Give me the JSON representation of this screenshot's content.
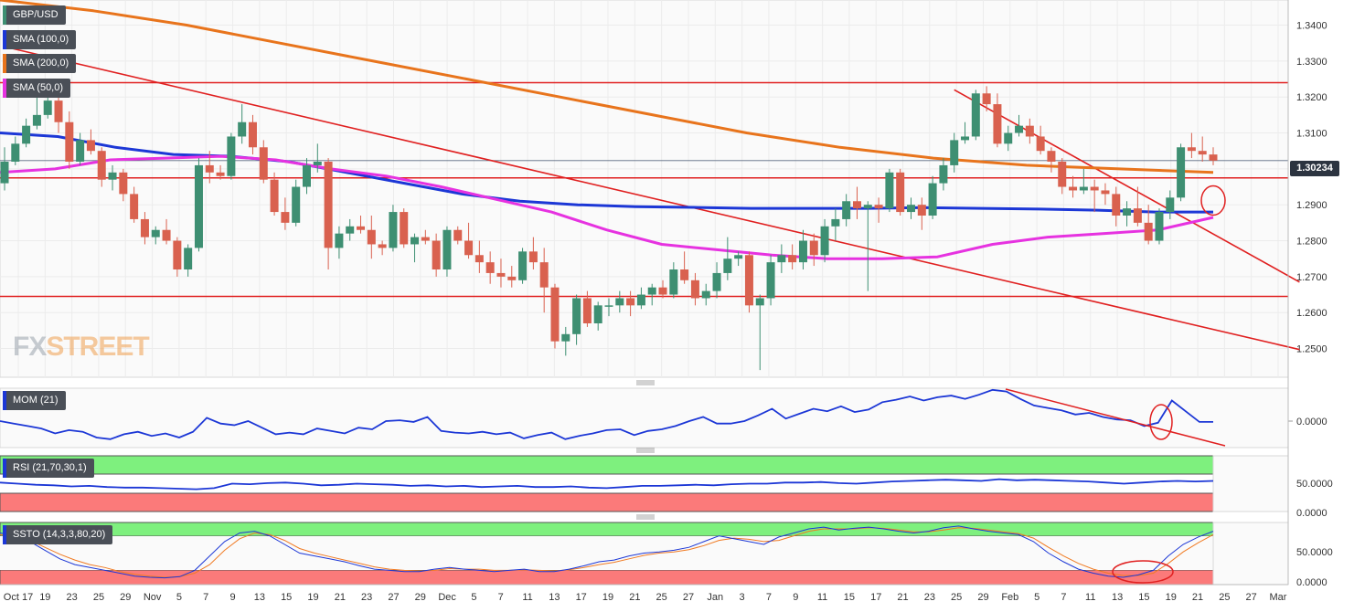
{
  "colors": {
    "up": "#3e8f72",
    "down": "#d9614f",
    "sma200": "#e8741c",
    "sma100": "#1c37d6",
    "sma50": "#e632e0",
    "hline": "#e02020",
    "mom": "#1c37d6",
    "ssto_k": "#1c37d6",
    "ssto_d": "#f07a22",
    "ob": "#7ef07e",
    "os": "#fb7a7a"
  },
  "legends": {
    "main": "GBP/USD",
    "sma100": "SMA (100,0)",
    "sma200": "SMA (200,0)",
    "sma50": "SMA (50,0)",
    "mom": "MOM (21)",
    "rsi": "RSI (21,70,30,1)",
    "ssto": "SSTO (14,3,3,80,20)"
  },
  "watermark": {
    "prefix": "FX",
    "suffix": "STREET"
  },
  "price_tag": "1.30234",
  "chart_data": {
    "type": "candlestick",
    "x_labels": [
      "Oct 17",
      "19",
      "23",
      "25",
      "29",
      "Nov",
      "5",
      "7",
      "9",
      "13",
      "15",
      "19",
      "21",
      "23",
      "27",
      "29",
      "Dec",
      "5",
      "7",
      "11",
      "13",
      "17",
      "19",
      "21",
      "25",
      "27",
      "Jan",
      "3",
      "7",
      "9",
      "11",
      "15",
      "17",
      "21",
      "23",
      "25",
      "29",
      "Feb",
      "5",
      "7",
      "11",
      "13",
      "15",
      "19",
      "21",
      "25",
      "27",
      "Mar"
    ],
    "y_ticks": [
      "1.3400",
      "1.3300",
      "1.3200",
      "1.3100",
      "1.3000",
      "1.2900",
      "1.2800",
      "1.2700",
      "1.2600",
      "1.2500"
    ],
    "ylim": [
      1.242,
      1.347
    ],
    "candles": [
      [
        1.296,
        1.306,
        1.294,
        1.302
      ],
      [
        1.302,
        1.309,
        1.301,
        1.307
      ],
      [
        1.307,
        1.314,
        1.306,
        1.312
      ],
      [
        1.312,
        1.32,
        1.311,
        1.315
      ],
      [
        1.315,
        1.324,
        1.314,
        1.319
      ],
      [
        1.319,
        1.323,
        1.31,
        1.313
      ],
      [
        1.313,
        1.316,
        1.3,
        1.302
      ],
      [
        1.302,
        1.31,
        1.301,
        1.308
      ],
      [
        1.308,
        1.311,
        1.304,
        1.305
      ],
      [
        1.305,
        1.306,
        1.295,
        1.297
      ],
      [
        1.297,
        1.301,
        1.294,
        1.299
      ],
      [
        1.299,
        1.3,
        1.291,
        1.293
      ],
      [
        1.293,
        1.295,
        1.285,
        1.286
      ],
      [
        1.286,
        1.288,
        1.279,
        1.281
      ],
      [
        1.281,
        1.284,
        1.279,
        1.283
      ],
      [
        1.283,
        1.286,
        1.279,
        1.28
      ],
      [
        1.28,
        1.281,
        1.27,
        1.272
      ],
      [
        1.272,
        1.279,
        1.27,
        1.278
      ],
      [
        1.278,
        1.303,
        1.277,
        1.301
      ],
      [
        1.301,
        1.305,
        1.296,
        1.299
      ],
      [
        1.299,
        1.301,
        1.297,
        1.298
      ],
      [
        1.298,
        1.31,
        1.297,
        1.309
      ],
      [
        1.309,
        1.318,
        1.307,
        1.313
      ],
      [
        1.313,
        1.315,
        1.304,
        1.306
      ],
      [
        1.306,
        1.308,
        1.296,
        1.297
      ],
      [
        1.297,
        1.299,
        1.287,
        1.288
      ],
      [
        1.288,
        1.292,
        1.283,
        1.285
      ],
      [
        1.285,
        1.297,
        1.284,
        1.295
      ],
      [
        1.295,
        1.303,
        1.293,
        1.301
      ],
      [
        1.301,
        1.307,
        1.299,
        1.302
      ],
      [
        1.302,
        1.303,
        1.272,
        1.278
      ],
      [
        1.278,
        1.284,
        1.275,
        1.282
      ],
      [
        1.282,
        1.286,
        1.28,
        1.284
      ],
      [
        1.284,
        1.287,
        1.282,
        1.283
      ],
      [
        1.283,
        1.287,
        1.275,
        1.279
      ],
      [
        1.279,
        1.28,
        1.276,
        1.278
      ],
      [
        1.278,
        1.29,
        1.277,
        1.288
      ],
      [
        1.288,
        1.289,
        1.278,
        1.279
      ],
      [
        1.279,
        1.282,
        1.274,
        1.281
      ],
      [
        1.281,
        1.283,
        1.279,
        1.28
      ],
      [
        1.28,
        1.282,
        1.27,
        1.272
      ],
      [
        1.272,
        1.284,
        1.27,
        1.283
      ],
      [
        1.283,
        1.284,
        1.279,
        1.28
      ],
      [
        1.28,
        1.285,
        1.275,
        1.276
      ],
      [
        1.276,
        1.28,
        1.271,
        1.274
      ],
      [
        1.274,
        1.277,
        1.268,
        1.271
      ],
      [
        1.271,
        1.275,
        1.267,
        1.27
      ],
      [
        1.27,
        1.273,
        1.267,
        1.269
      ],
      [
        1.269,
        1.278,
        1.268,
        1.277
      ],
      [
        1.277,
        1.281,
        1.272,
        1.274
      ],
      [
        1.274,
        1.278,
        1.26,
        1.267
      ],
      [
        1.267,
        1.268,
        1.25,
        1.252
      ],
      [
        1.252,
        1.256,
        1.248,
        1.254
      ],
      [
        1.254,
        1.265,
        1.251,
        1.264
      ],
      [
        1.264,
        1.266,
        1.256,
        1.257
      ],
      [
        1.257,
        1.263,
        1.255,
        1.262
      ],
      [
        1.262,
        1.264,
        1.259,
        1.262
      ],
      [
        1.262,
        1.266,
        1.26,
        1.264
      ],
      [
        1.264,
        1.266,
        1.259,
        1.262
      ],
      [
        1.262,
        1.267,
        1.261,
        1.265
      ],
      [
        1.265,
        1.268,
        1.262,
        1.267
      ],
      [
        1.267,
        1.269,
        1.264,
        1.265
      ],
      [
        1.265,
        1.274,
        1.264,
        1.272
      ],
      [
        1.272,
        1.277,
        1.268,
        1.269
      ],
      [
        1.269,
        1.271,
        1.262,
        1.264
      ],
      [
        1.264,
        1.268,
        1.262,
        1.266
      ],
      [
        1.266,
        1.274,
        1.264,
        1.271
      ],
      [
        1.271,
        1.281,
        1.269,
        1.275
      ],
      [
        1.275,
        1.277,
        1.273,
        1.276
      ],
      [
        1.276,
        1.277,
        1.26,
        1.262
      ],
      [
        1.262,
        1.265,
        1.244,
        1.264
      ],
      [
        1.264,
        1.276,
        1.262,
        1.274
      ],
      [
        1.274,
        1.279,
        1.271,
        1.276
      ],
      [
        1.276,
        1.279,
        1.272,
        1.274
      ],
      [
        1.274,
        1.283,
        1.272,
        1.28
      ],
      [
        1.28,
        1.282,
        1.273,
        1.276
      ],
      [
        1.276,
        1.286,
        1.274,
        1.284
      ],
      [
        1.284,
        1.289,
        1.28,
        1.286
      ],
      [
        1.286,
        1.293,
        1.284,
        1.291
      ],
      [
        1.291,
        1.295,
        1.286,
        1.289
      ],
      [
        1.289,
        1.291,
        1.266,
        1.29
      ],
      [
        1.29,
        1.292,
        1.285,
        1.289
      ],
      [
        1.289,
        1.3,
        1.288,
        1.299
      ],
      [
        1.299,
        1.3,
        1.287,
        1.288
      ],
      [
        1.288,
        1.292,
        1.286,
        1.29
      ],
      [
        1.29,
        1.292,
        1.283,
        1.287
      ],
      [
        1.287,
        1.298,
        1.286,
        1.296
      ],
      [
        1.296,
        1.303,
        1.294,
        1.301
      ],
      [
        1.301,
        1.31,
        1.299,
        1.308
      ],
      [
        1.308,
        1.313,
        1.307,
        1.309
      ],
      [
        1.309,
        1.322,
        1.308,
        1.321
      ],
      [
        1.321,
        1.323,
        1.316,
        1.318
      ],
      [
        1.318,
        1.321,
        1.306,
        1.307
      ],
      [
        1.307,
        1.312,
        1.305,
        1.31
      ],
      [
        1.31,
        1.315,
        1.309,
        1.312
      ],
      [
        1.312,
        1.314,
        1.307,
        1.309
      ],
      [
        1.309,
        1.312,
        1.304,
        1.305
      ],
      [
        1.305,
        1.306,
        1.299,
        1.302
      ],
      [
        1.302,
        1.303,
        1.293,
        1.295
      ],
      [
        1.295,
        1.298,
        1.292,
        1.294
      ],
      [
        1.294,
        1.3,
        1.293,
        1.295
      ],
      [
        1.295,
        1.297,
        1.288,
        1.294
      ],
      [
        1.294,
        1.296,
        1.29,
        1.293
      ],
      [
        1.293,
        1.295,
        1.284,
        1.287
      ],
      [
        1.287,
        1.291,
        1.284,
        1.289
      ],
      [
        1.289,
        1.295,
        1.284,
        1.285
      ],
      [
        1.285,
        1.29,
        1.279,
        1.28
      ],
      [
        1.28,
        1.289,
        1.279,
        1.288
      ],
      [
        1.288,
        1.294,
        1.286,
        1.292
      ],
      [
        1.292,
        1.307,
        1.291,
        1.306
      ],
      [
        1.306,
        1.31,
        1.303,
        1.305
      ],
      [
        1.305,
        1.309,
        1.302,
        1.304
      ],
      [
        1.304,
        1.306,
        1.301,
        1.3023
      ]
    ],
    "sma200": [
      1.347,
      1.344,
      1.34,
      1.335,
      1.33,
      1.325,
      1.32,
      1.315,
      1.31,
      1.306,
      1.303,
      1.301,
      1.3,
      1.299
    ],
    "sma100": [
      1.31,
      1.309,
      1.306,
      1.304,
      1.3035,
      1.302,
      1.299,
      1.296,
      1.293,
      1.291,
      1.29,
      1.2895,
      1.2893,
      1.289,
      1.289,
      1.289,
      1.2892,
      1.289,
      1.2888,
      1.2885,
      1.288,
      1.288
    ],
    "sma50": [
      1.299,
      1.3,
      1.3025,
      1.303,
      1.3035,
      1.3025,
      1.3,
      1.298,
      1.295,
      1.2915,
      1.288,
      1.283,
      1.279,
      1.2775,
      1.276,
      1.275,
      1.275,
      1.2755,
      1.279,
      1.281,
      1.282,
      1.283,
      1.2865
    ],
    "hlines": [
      1.324,
      1.2975,
      1.2645
    ],
    "mom_label": "0.0000",
    "rsi_ticks": [
      "50.0000",
      "0.0000"
    ],
    "ssto_ticks": [
      "50.0000",
      "0.0000"
    ]
  }
}
